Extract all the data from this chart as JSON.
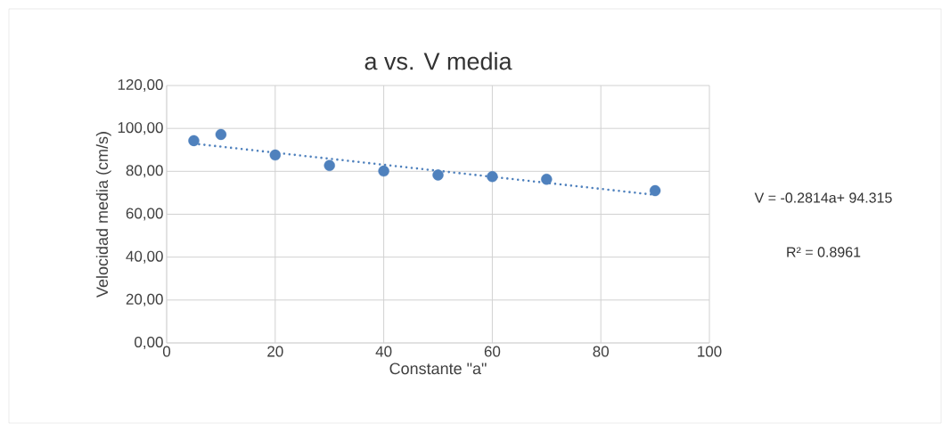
{
  "chart_data": {
    "type": "scatter",
    "title": "a vs. V media",
    "xlabel": "Constante \"a\"",
    "ylabel": "Velocidad media (cm/s)",
    "x": [
      5,
      10,
      20,
      30,
      40,
      50,
      60,
      70,
      90
    ],
    "series": [
      {
        "color": "#4f81bd",
        "marker": "circle",
        "values": [
          94.3,
          97.2,
          87.6,
          82.7,
          80.1,
          78.3,
          77.5,
          76.3,
          71.0
        ]
      },
      {
        "type": "line",
        "color": "#4f81bd",
        "marker": "none",
        "line_style": "dotted",
        "x": [
          5,
          90
        ],
        "values": [
          92.9,
          69.0
        ]
      }
    ],
    "xlim": [
      0,
      100
    ],
    "xticks": [
      0,
      20,
      40,
      60,
      80,
      100
    ],
    "ylim": [
      0,
      120
    ],
    "yticks": [
      {
        "value": 0,
        "label": "0,00"
      },
      {
        "value": 20,
        "label": "20,00"
      },
      {
        "value": 40,
        "label": "40,00"
      },
      {
        "value": 60,
        "label": "60,00"
      },
      {
        "value": 80,
        "label": "80,00"
      },
      {
        "value": 100,
        "label": "100,00"
      },
      {
        "value": 120,
        "label": "120,00"
      }
    ],
    "grid": true,
    "annotations": [
      "V = -0.2814a+ 94.315",
      "R² = 0.8961"
    ]
  }
}
